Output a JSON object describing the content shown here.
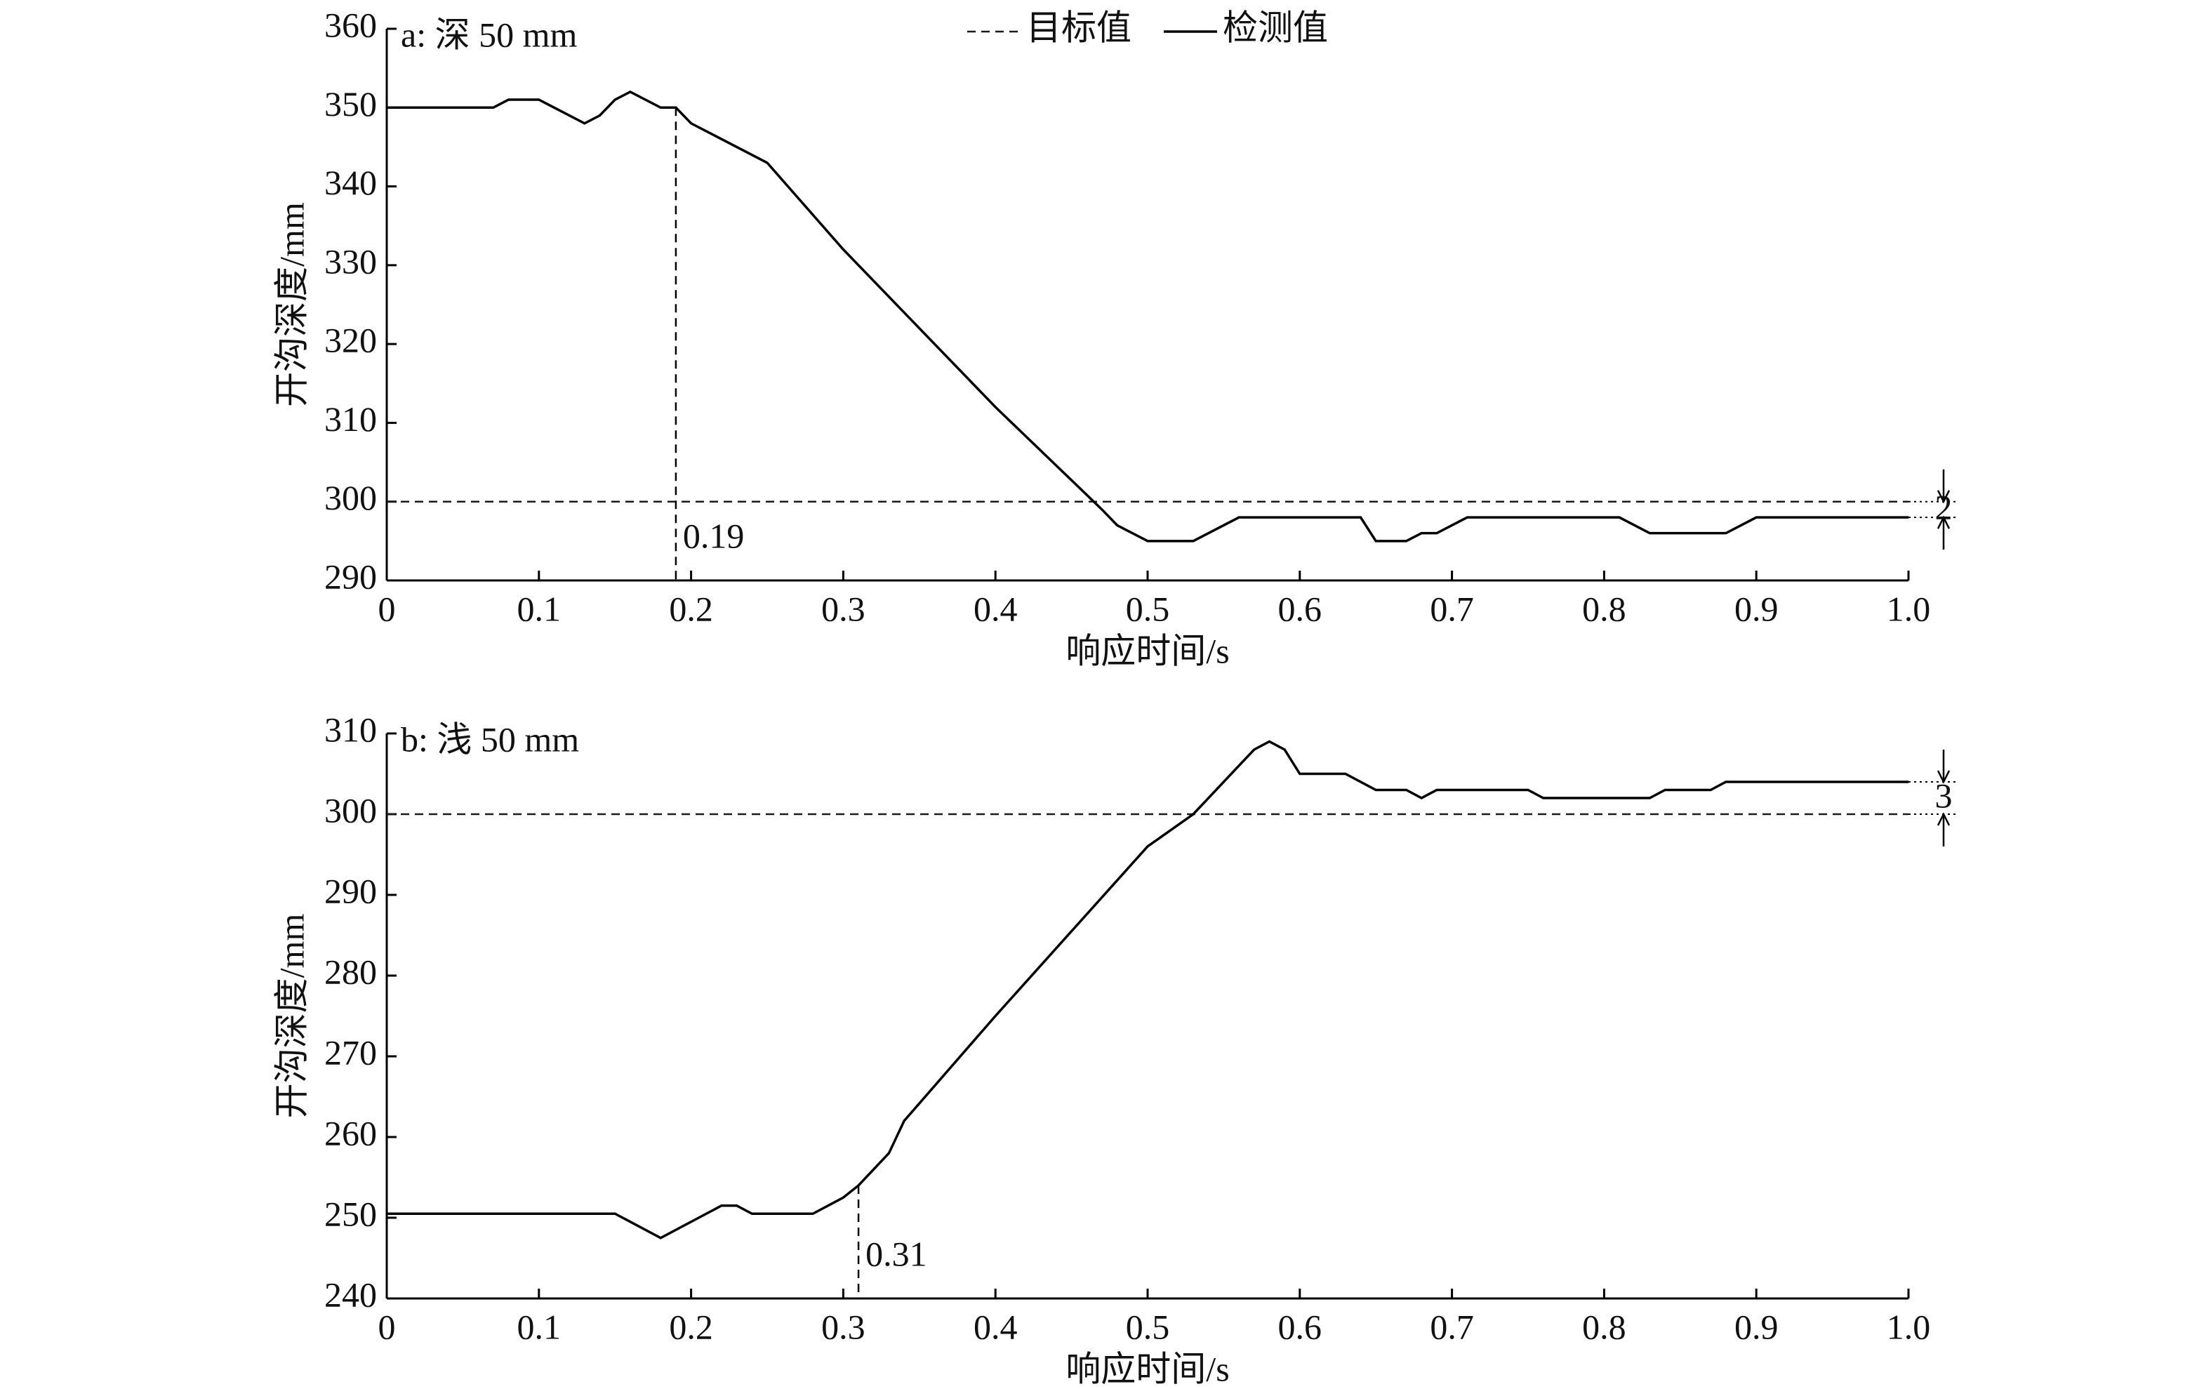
{
  "chart_data": [
    {
      "type": "line",
      "annotation_title": "a: 深 50 mm",
      "xlabel": "响应时间/s",
      "ylabel": "开沟深度/mm",
      "xlim": [
        0,
        1
      ],
      "xticks": [
        0,
        0.1,
        0.2,
        0.3,
        0.4,
        0.5,
        0.6,
        0.7,
        0.8,
        0.9,
        {
          "value": 1,
          "label": "1.0"
        }
      ],
      "ylim": [
        290,
        360
      ],
      "yticks": [
        290,
        300,
        310,
        320,
        330,
        340,
        350,
        360
      ],
      "series": [
        {
          "name": "目标值",
          "color": "#1a1a1a",
          "dash": true,
          "x": [
            0,
            1
          ],
          "values": [
            300,
            300
          ]
        },
        {
          "name": "检测值",
          "color": "#000000",
          "dash": false,
          "x": [
            0,
            0.07,
            0.08,
            0.1,
            0.13,
            0.14,
            0.15,
            0.16,
            0.18,
            0.19,
            0.2,
            0.25,
            0.3,
            0.4,
            0.47,
            0.48,
            0.5,
            0.53,
            0.56,
            0.64,
            0.65,
            0.67,
            0.68,
            0.69,
            0.71,
            0.81,
            0.83,
            0.88,
            0.9,
            1
          ],
          "values": [
            350,
            350,
            351,
            351,
            348,
            349,
            351,
            352,
            350,
            350,
            348,
            343,
            332,
            312,
            299,
            297,
            295,
            295,
            298,
            298,
            295,
            295,
            296,
            296,
            298,
            298,
            296,
            296,
            298,
            298
          ]
        }
      ],
      "annotations": [
        {
          "text": "0.19",
          "x": 0.19
        },
        {
          "text": "2"
        }
      ]
    },
    {
      "type": "line",
      "annotation_title": "b: 浅 50 mm",
      "xlabel": "响应时间/s",
      "ylabel": "开沟深度/mm",
      "xlim": [
        0,
        1
      ],
      "xticks": [
        0,
        0.1,
        0.2,
        0.3,
        0.4,
        0.5,
        0.6,
        0.7,
        0.8,
        0.9,
        {
          "value": 1,
          "label": "1.0"
        }
      ],
      "ylim": [
        240,
        310
      ],
      "yticks": [
        240,
        250,
        260,
        270,
        280,
        290,
        300,
        310
      ],
      "series": [
        {
          "color": "#1a1a1a",
          "dash": true,
          "x": [
            0,
            1
          ],
          "values": [
            300,
            300
          ]
        },
        {
          "color": "#000000",
          "dash": false,
          "x": [
            0,
            0.15,
            0.18,
            0.22,
            0.23,
            0.24,
            0.28,
            0.3,
            0.31,
            0.33,
            0.34,
            0.4,
            0.5,
            0.53,
            0.57,
            0.58,
            0.59,
            0.6,
            0.63,
            0.65,
            0.67,
            0.68,
            0.69,
            0.75,
            0.76,
            0.83,
            0.84,
            0.87,
            0.88,
            1
          ],
          "values": [
            250.5,
            250.5,
            247.5,
            251.5,
            251.5,
            250.5,
            250.5,
            252.5,
            254,
            258,
            262,
            275,
            296,
            300,
            308,
            309,
            308,
            305,
            305,
            303,
            303,
            302,
            303,
            303,
            302,
            302,
            303,
            303,
            304,
            304
          ]
        }
      ],
      "annotations": [
        {
          "text": "0.31",
          "x": 0.31
        },
        {
          "text": "3"
        }
      ]
    }
  ]
}
